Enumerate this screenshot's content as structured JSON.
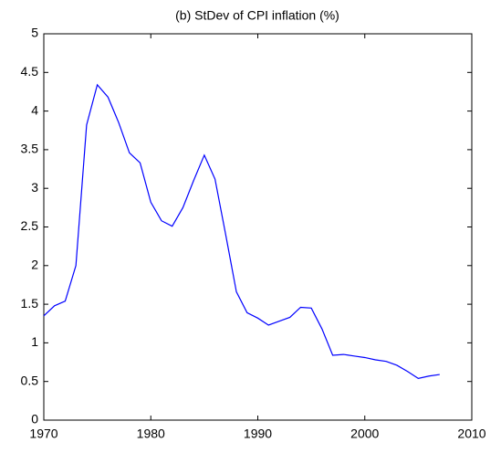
{
  "chart_data": {
    "type": "line",
    "title": "(b) StDev of CPI inflation (%)",
    "x": [
      1970,
      1971,
      1972,
      1973,
      1974,
      1975,
      1976,
      1977,
      1978,
      1979,
      1980,
      1981,
      1982,
      1983,
      1984,
      1985,
      1986,
      1987,
      1988,
      1989,
      1990,
      1991,
      1992,
      1993,
      1994,
      1995,
      1996,
      1997,
      1998,
      1999,
      2000,
      2001,
      2002,
      2003,
      2004,
      2005,
      2006,
      2007
    ],
    "series": [
      {
        "color": "#0000ff",
        "values": [
          1.35,
          1.48,
          1.54,
          2.0,
          3.82,
          4.34,
          4.18,
          3.85,
          3.46,
          3.33,
          2.82,
          2.58,
          2.51,
          2.75,
          3.1,
          3.43,
          3.12,
          2.4,
          1.66,
          1.39,
          1.32,
          1.23,
          1.28,
          1.33,
          1.46,
          1.45,
          1.18,
          0.84,
          0.85,
          0.83,
          0.81,
          0.78,
          0.76,
          0.71,
          0.63,
          0.54,
          0.57,
          0.59
        ]
      }
    ],
    "xlim": [
      1970,
      2010
    ],
    "xticks": [
      1970,
      1980,
      1990,
      2000,
      2010
    ],
    "ylim": [
      0,
      5
    ],
    "yticks": [
      0,
      0.5,
      1,
      1.5,
      2,
      2.5,
      3,
      3.5,
      4,
      4.5,
      5
    ]
  }
}
